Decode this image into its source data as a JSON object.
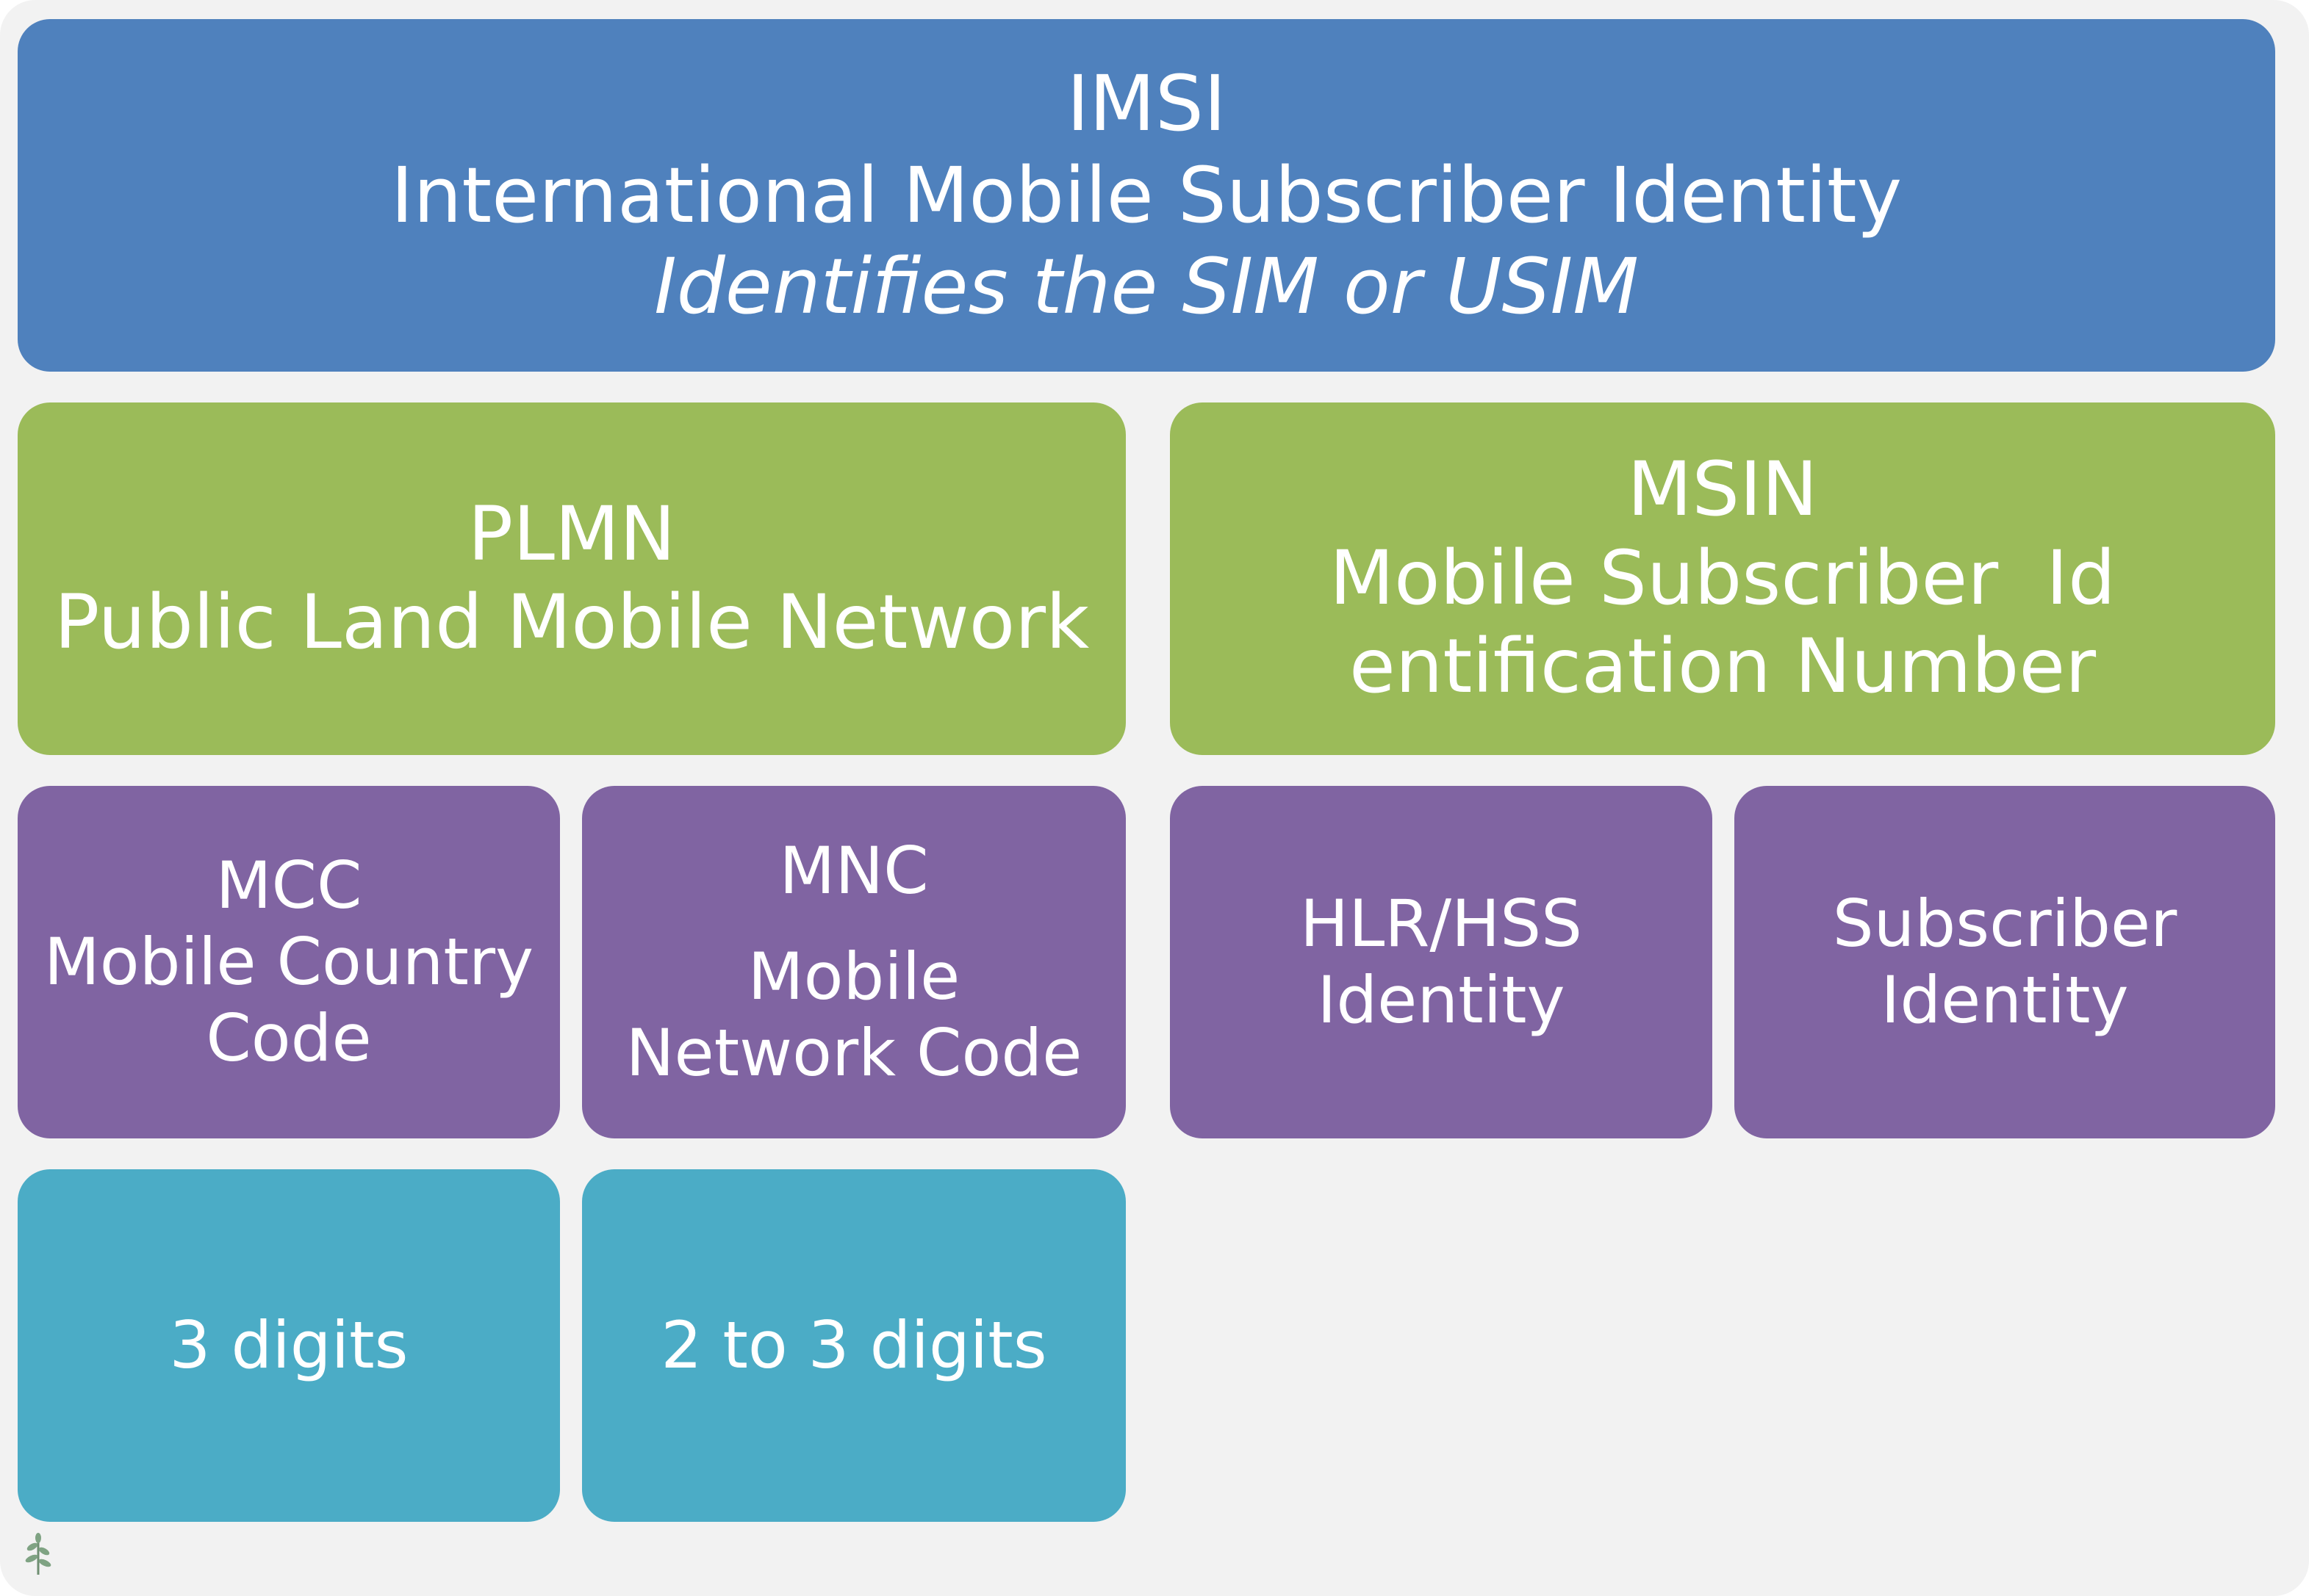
{
  "imsi": {
    "acronym": "IMSI",
    "full_name": "International Mobile Subscriber Identity",
    "description": "Identifies the SIM or USIM",
    "color": "#4f81bd"
  },
  "plmn": {
    "acronym": "PLMN",
    "full_name": "Public Land Mobile Network",
    "color": "#9bbb59"
  },
  "msin": {
    "acronym": "MSIN",
    "full_name_line1": "Mobile Subscriber  Id",
    "full_name_line2": "entification Number",
    "color": "#9bbb59"
  },
  "mcc": {
    "acronym": "MCC",
    "full_name_line1": "Mobile Country",
    "full_name_line2": "Code",
    "digits": "3 digits",
    "color": "#8064a2"
  },
  "mnc": {
    "acronym": "MNC",
    "full_name_line1": "Mobile",
    "full_name_line2": "Network Code",
    "digits": "2 to 3 digits",
    "color": "#8064a2"
  },
  "hlr": {
    "line1": "HLR/HSS",
    "line2": "Identity",
    "color": "#8064a2"
  },
  "subscriber": {
    "line1": "Subscriber",
    "line2": "Identity",
    "color": "#8064a2"
  },
  "digits_color": "#4bacc6",
  "logo": {
    "icon": "sprout-icon"
  }
}
